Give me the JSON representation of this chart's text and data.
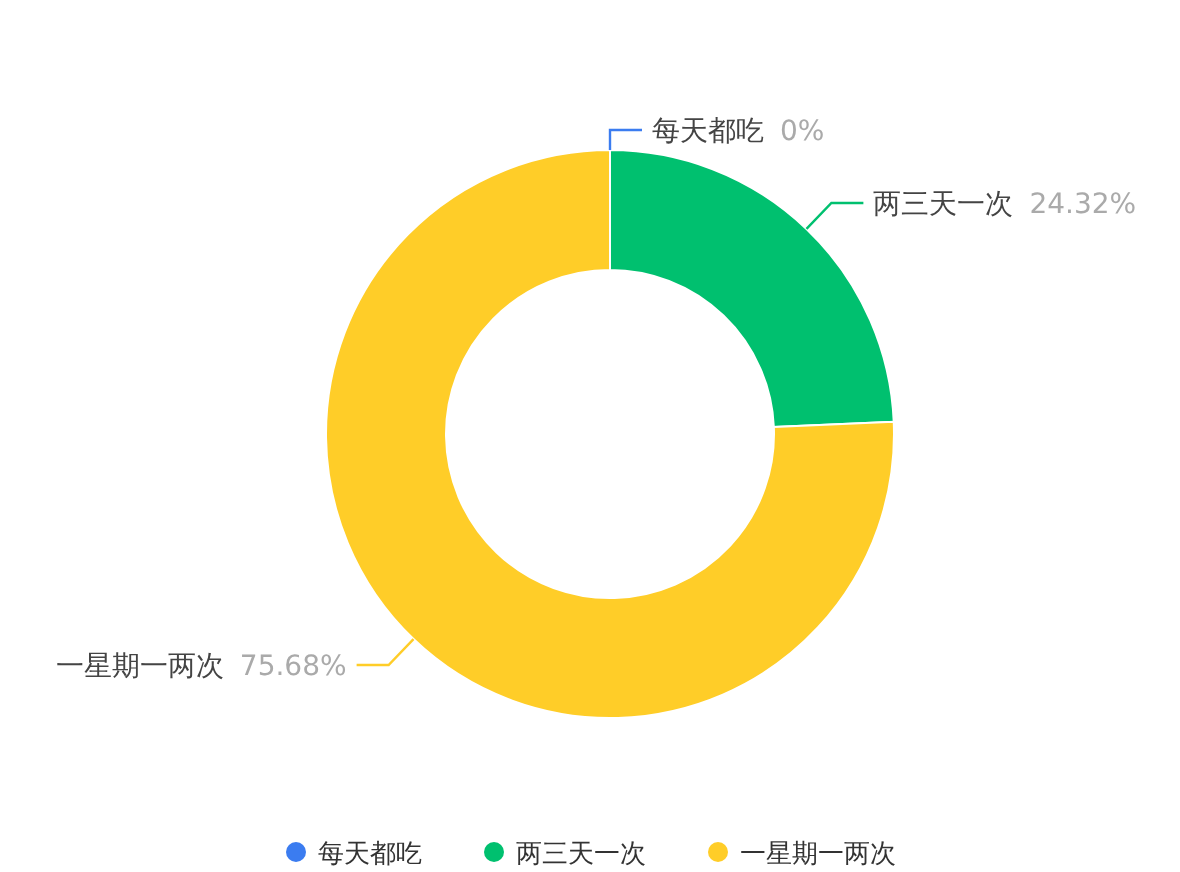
{
  "chart_data": {
    "type": "donut",
    "categories": [
      "每天都吃",
      "两三天一次",
      "一星期一两次"
    ],
    "values": [
      0,
      24.32,
      75.68
    ],
    "colors": [
      "#3b7cf0",
      "#00c06f",
      "#ffcd28"
    ],
    "value_labels": [
      "0%",
      "24.32%",
      "75.68%"
    ],
    "legend": "bottom"
  }
}
